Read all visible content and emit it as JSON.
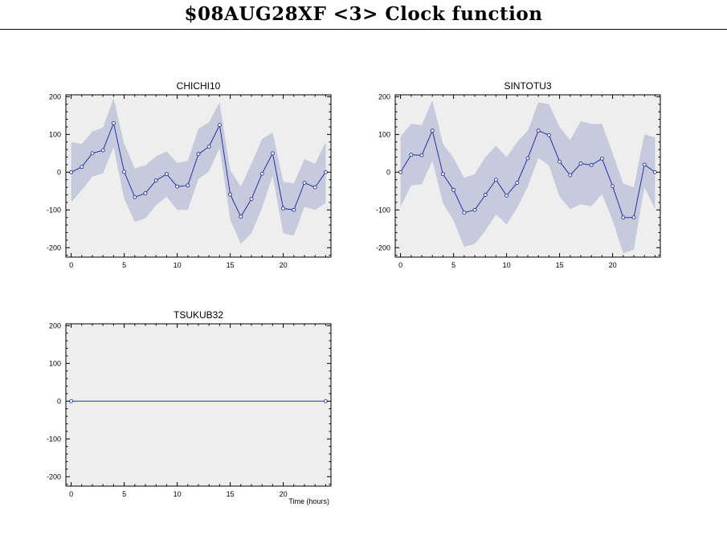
{
  "title": "$08AUG28XF <3>  Clock function",
  "colors": {
    "plot_bg": "#eeeeee",
    "band": "#c6cadc",
    "line": "#2333a3",
    "marker_fill": "#ffffff",
    "axis": "#000000"
  },
  "chart_data": [
    {
      "type": "line",
      "title": "CHICHI10",
      "xlim": [
        -0.5,
        24.5
      ],
      "ylim": [
        -225,
        205
      ],
      "xticks": [
        0,
        5,
        10,
        15,
        20
      ],
      "yticks": [
        -200,
        -100,
        0,
        100,
        200
      ],
      "xlabel": "",
      "x": [
        0,
        1,
        2,
        3,
        4,
        5,
        6,
        7,
        8,
        9,
        10,
        11,
        12,
        13,
        14,
        15,
        16,
        17,
        18,
        19,
        20,
        21,
        22,
        23,
        24
      ],
      "y": [
        0,
        14,
        50,
        58,
        130,
        1,
        -66,
        -56,
        -22,
        -5,
        -38,
        -35,
        48,
        68,
        125,
        -59,
        -118,
        -71,
        -4,
        50,
        -96,
        -100,
        -28,
        -40,
        0
      ],
      "band_upper": [
        80,
        75,
        108,
        118,
        196,
        75,
        10,
        18,
        42,
        55,
        25,
        30,
        115,
        132,
        185,
        5,
        -38,
        22,
        88,
        105,
        -25,
        -30,
        35,
        22,
        80
      ],
      "band_lower": [
        -80,
        -47,
        -12,
        -3,
        66,
        -70,
        -132,
        -122,
        -88,
        -65,
        -100,
        -100,
        -18,
        2,
        64,
        -126,
        -190,
        -162,
        -95,
        -10,
        -162,
        -168,
        -92,
        -100,
        -82
      ]
    },
    {
      "type": "line",
      "title": "SINTOTU3",
      "xlim": [
        -0.5,
        24.5
      ],
      "ylim": [
        -225,
        205
      ],
      "xticks": [
        0,
        5,
        10,
        15,
        20
      ],
      "yticks": [
        -200,
        -100,
        0,
        100,
        200
      ],
      "xlabel": "",
      "x": [
        0,
        1,
        2,
        3,
        4,
        5,
        6,
        7,
        8,
        9,
        10,
        11,
        12,
        13,
        14,
        15,
        16,
        17,
        18,
        19,
        20,
        21,
        22,
        23,
        24
      ],
      "y": [
        0,
        46,
        45,
        110,
        -5,
        -47,
        -107,
        -100,
        -60,
        -20,
        -62,
        -28,
        37,
        110,
        98,
        28,
        -8,
        23,
        19,
        36,
        -37,
        -120,
        -120,
        20,
        0
      ],
      "band_upper": [
        95,
        128,
        125,
        190,
        75,
        38,
        -15,
        -5,
        40,
        70,
        40,
        80,
        110,
        185,
        180,
        120,
        85,
        135,
        128,
        128,
        50,
        -30,
        -40,
        100,
        92
      ],
      "band_lower": [
        -92,
        -35,
        -32,
        30,
        -82,
        -128,
        -198,
        -190,
        -155,
        -112,
        -138,
        -95,
        -38,
        38,
        18,
        -65,
        -98,
        -85,
        -90,
        -58,
        -128,
        -215,
        -205,
        -40,
        -98
      ]
    },
    {
      "type": "line",
      "title": "TSUKUB32",
      "xlim": [
        -0.5,
        24.5
      ],
      "ylim": [
        -225,
        205
      ],
      "xticks": [
        0,
        5,
        10,
        15,
        20
      ],
      "yticks": [
        -200,
        -100,
        0,
        100,
        200
      ],
      "xlabel": "Time (hours)",
      "x": [
        0,
        24
      ],
      "y": [
        0,
        0
      ],
      "band_upper": [],
      "band_lower": []
    }
  ]
}
